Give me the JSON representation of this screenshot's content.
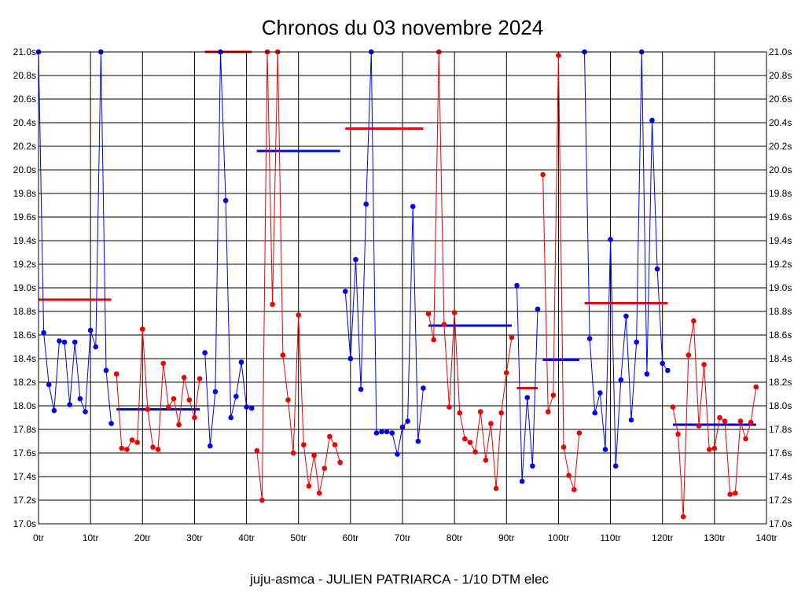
{
  "chart_data": {
    "type": "line",
    "title": "Chronos du 03 novembre 2024",
    "footer": "juju-asmca - JULIEN PATRIARCA - 1/10 DTM elec",
    "xlim": [
      0,
      140
    ],
    "ylim": [
      17.0,
      21.0
    ],
    "x_ticks": [
      0,
      10,
      20,
      30,
      40,
      50,
      60,
      70,
      80,
      90,
      100,
      110,
      120,
      130,
      140
    ],
    "x_tick_labels": [
      "0tr",
      "10tr",
      "20tr",
      "30tr",
      "40tr",
      "50tr",
      "60tr",
      "70tr",
      "80tr",
      "90tr",
      "100tr",
      "110tr",
      "120tr",
      "130tr",
      "140tr"
    ],
    "y_ticks": [
      17.0,
      17.2,
      17.4,
      17.6,
      17.8,
      18.0,
      18.2,
      18.4,
      18.6,
      18.8,
      19.0,
      19.2,
      19.4,
      19.6,
      19.8,
      20.0,
      20.2,
      20.4,
      20.6,
      20.8,
      21.0
    ],
    "y_tick_labels": [
      "17.0s",
      "17.2s",
      "17.4s",
      "17.6s",
      "17.8s",
      "18.0s",
      "18.2s",
      "18.4s",
      "18.6s",
      "18.8s",
      "19.0s",
      "19.2s",
      "19.4s",
      "19.6s",
      "19.8s",
      "20.0s",
      "20.2s",
      "20.4s",
      "20.6s",
      "20.8s",
      "21.0s"
    ],
    "grid": true,
    "series": [
      {
        "color": "#0000ee",
        "points": [
          [
            0,
            21.0
          ],
          [
            1,
            18.62
          ],
          [
            2,
            18.18
          ],
          [
            3,
            17.96
          ],
          [
            4,
            18.55
          ],
          [
            5,
            18.54
          ],
          [
            6,
            18.01
          ],
          [
            7,
            18.54
          ],
          [
            8,
            18.06
          ],
          [
            9,
            17.95
          ],
          [
            10,
            18.64
          ],
          [
            11,
            18.5
          ],
          [
            12,
            21.0
          ],
          [
            13,
            18.3
          ],
          [
            14,
            17.85
          ]
        ]
      },
      {
        "color": "#ee0000",
        "points": [
          [
            15,
            18.27
          ],
          [
            16,
            17.64
          ],
          [
            17,
            17.63
          ],
          [
            18,
            17.71
          ],
          [
            19,
            17.69
          ],
          [
            20,
            18.65
          ],
          [
            21,
            17.97
          ],
          [
            22,
            17.65
          ],
          [
            23,
            17.63
          ],
          [
            24,
            18.36
          ],
          [
            25,
            17.99
          ],
          [
            26,
            18.06
          ],
          [
            27,
            17.84
          ],
          [
            28,
            18.24
          ],
          [
            29,
            18.05
          ],
          [
            30,
            17.9
          ],
          [
            31,
            18.23
          ]
        ]
      },
      {
        "color": "#0000ee",
        "points": [
          [
            32,
            18.45
          ],
          [
            33,
            17.66
          ],
          [
            34,
            18.12
          ],
          [
            35,
            21.0
          ],
          [
            36,
            19.74
          ],
          [
            37,
            17.9
          ],
          [
            38,
            18.08
          ],
          [
            39,
            18.37
          ],
          [
            40,
            17.99
          ],
          [
            41,
            17.98
          ]
        ]
      },
      {
        "color": "#ee0000",
        "points": [
          [
            42,
            17.62
          ],
          [
            43,
            17.2
          ],
          [
            44,
            21.0
          ],
          [
            45,
            18.86
          ],
          [
            46,
            21.0
          ],
          [
            47,
            18.43
          ],
          [
            48,
            18.05
          ],
          [
            49,
            17.6
          ],
          [
            50,
            18.77
          ],
          [
            51,
            17.67
          ],
          [
            52,
            17.32
          ],
          [
            53,
            17.58
          ],
          [
            54,
            17.26
          ],
          [
            55,
            17.47
          ],
          [
            56,
            17.74
          ],
          [
            57,
            17.67
          ],
          [
            58,
            17.52
          ]
        ]
      },
      {
        "color": "#0000ee",
        "points": [
          [
            59,
            18.97
          ],
          [
            60,
            18.4
          ],
          [
            61,
            19.24
          ],
          [
            62,
            18.14
          ],
          [
            63,
            19.71
          ],
          [
            64,
            21.0
          ],
          [
            65,
            17.77
          ],
          [
            66,
            17.78
          ],
          [
            67,
            17.78
          ],
          [
            68,
            17.77
          ],
          [
            69,
            17.59
          ],
          [
            70,
            17.82
          ],
          [
            71,
            17.87
          ],
          [
            72,
            19.69
          ],
          [
            73,
            17.7
          ],
          [
            74,
            18.15
          ]
        ]
      },
      {
        "color": "#ee0000",
        "points": [
          [
            75,
            18.78
          ],
          [
            76,
            18.56
          ],
          [
            77,
            21.0
          ],
          [
            78,
            18.69
          ],
          [
            79,
            17.99
          ],
          [
            80,
            18.79
          ],
          [
            81,
            17.94
          ],
          [
            82,
            17.72
          ],
          [
            83,
            17.69
          ],
          [
            84,
            17.61
          ],
          [
            85,
            17.95
          ],
          [
            86,
            17.54
          ],
          [
            87,
            17.85
          ],
          [
            88,
            17.3
          ],
          [
            89,
            17.94
          ],
          [
            90,
            18.28
          ],
          [
            91,
            18.58
          ]
        ]
      },
      {
        "color": "#0000ee",
        "points": [
          [
            92,
            19.02
          ],
          [
            93,
            17.36
          ],
          [
            94,
            18.07
          ],
          [
            95,
            17.49
          ],
          [
            96,
            18.82
          ]
        ]
      },
      {
        "color": "#ee0000",
        "points": [
          [
            97,
            19.96
          ],
          [
            98,
            17.95
          ],
          [
            99,
            18.09
          ],
          [
            100,
            20.97
          ],
          [
            101,
            17.65
          ],
          [
            102,
            17.41
          ],
          [
            103,
            17.29
          ],
          [
            104,
            17.77
          ]
        ]
      },
      {
        "color": "#0000ee",
        "points": [
          [
            105,
            21.0
          ],
          [
            106,
            18.57
          ],
          [
            107,
            17.94
          ],
          [
            108,
            18.11
          ],
          [
            109,
            17.63
          ],
          [
            110,
            19.41
          ],
          [
            111,
            17.49
          ],
          [
            112,
            18.22
          ],
          [
            113,
            18.76
          ],
          [
            114,
            17.88
          ],
          [
            115,
            18.54
          ],
          [
            116,
            21.0
          ],
          [
            117,
            18.27
          ],
          [
            118,
            20.42
          ],
          [
            119,
            19.16
          ],
          [
            120,
            18.36
          ],
          [
            121,
            18.3
          ]
        ]
      },
      {
        "color": "#ee0000",
        "points": [
          [
            122,
            17.99
          ],
          [
            123,
            17.76
          ],
          [
            124,
            17.06
          ],
          [
            125,
            18.43
          ],
          [
            126,
            18.72
          ],
          [
            127,
            17.83
          ],
          [
            128,
            18.35
          ],
          [
            129,
            17.63
          ],
          [
            130,
            17.64
          ],
          [
            131,
            17.9
          ],
          [
            132,
            17.87
          ],
          [
            133,
            17.25
          ],
          [
            134,
            17.26
          ],
          [
            135,
            17.87
          ],
          [
            136,
            17.72
          ],
          [
            137,
            17.86
          ],
          [
            138,
            18.16
          ]
        ]
      }
    ],
    "averages": [
      {
        "color": "#ee0000",
        "x": [
          0,
          14
        ],
        "y": 18.9
      },
      {
        "color": "#0000ee",
        "x": [
          15,
          31
        ],
        "y": 17.97
      },
      {
        "color": "#ee0000",
        "x": [
          32,
          41
        ],
        "y": 21.0
      },
      {
        "color": "#0000ee",
        "x": [
          42,
          58
        ],
        "y": 20.16
      },
      {
        "color": "#ee0000",
        "x": [
          59,
          74
        ],
        "y": 20.35
      },
      {
        "color": "#0000ee",
        "x": [
          75,
          91
        ],
        "y": 18.68
      },
      {
        "color": "#ee0000",
        "x": [
          92,
          96
        ],
        "y": 18.15
      },
      {
        "color": "#0000ee",
        "x": [
          97,
          104
        ],
        "y": 18.39
      },
      {
        "color": "#ee0000",
        "x": [
          105,
          121
        ],
        "y": 18.87
      },
      {
        "color": "#0000ee",
        "x": [
          122,
          138
        ],
        "y": 17.84
      }
    ]
  }
}
